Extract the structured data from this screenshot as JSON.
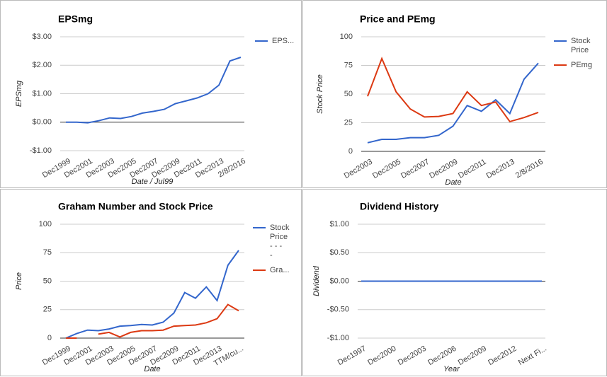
{
  "chart_data": [
    {
      "type": "line",
      "title": "EPSmg",
      "xlabel": "Date / Jul99",
      "ylabel": "EPSmg",
      "categories": [
        "Dec1999",
        null,
        "Dec2001",
        null,
        "Dec2003",
        null,
        "Dec2005",
        null,
        "Dec2007",
        null,
        "Dec2009",
        null,
        "Dec2011",
        null,
        "Dec2013",
        null,
        "2/8/2016"
      ],
      "series": [
        {
          "name": "EPS...",
          "color": "#3366cc",
          "values": [
            0,
            0,
            -0.02,
            0.05,
            0.15,
            0.13,
            0.2,
            0.32,
            0.38,
            0.45,
            0.65,
            0.75,
            0.85,
            1.0,
            1.3,
            2.15,
            2.28
          ]
        }
      ],
      "ylim": [
        -1,
        3
      ],
      "yticks": [
        {
          "value": 3,
          "label": "$3.00"
        },
        {
          "value": 2,
          "label": "$2.00"
        },
        {
          "value": 1,
          "label": "$1.00"
        },
        {
          "value": 0,
          "label": "$0.00"
        },
        {
          "value": -1,
          "label": "-$1.00"
        }
      ],
      "grid": true
    },
    {
      "type": "line",
      "title": "Price and PEmg",
      "xlabel": "Date",
      "ylabel": "Stock Price",
      "categories": [
        "Dec2003",
        null,
        "Dec2005",
        null,
        "Dec2007",
        null,
        "Dec2009",
        null,
        "Dec2011",
        null,
        "Dec2013",
        null,
        "2/8/2016"
      ],
      "series": [
        {
          "name": "Stock Price",
          "color": "#3366cc",
          "values": [
            7.5,
            10.5,
            10.5,
            12,
            12,
            14,
            22,
            40,
            35,
            45,
            33,
            63,
            77
          ]
        },
        {
          "name": "PEmg",
          "color": "#dc3912",
          "values": [
            48,
            81,
            52,
            37,
            30,
            30.5,
            33,
            52,
            40,
            43,
            26,
            29.5,
            34
          ]
        }
      ],
      "ylim": [
        0,
        100
      ],
      "yticks": [
        0,
        25,
        50,
        75,
        100
      ],
      "grid": true
    },
    {
      "type": "line",
      "title": "Graham Number and Stock Price",
      "xlabel": "Date",
      "ylabel": "Price",
      "categories": [
        "Dec1999",
        null,
        "Dec2001",
        null,
        "Dec2003",
        null,
        "Dec2005",
        null,
        "Dec2007",
        null,
        "Dec2009",
        null,
        "Dec2011",
        null,
        "Dec2013",
        null,
        "TTM/cu..."
      ],
      "series": [
        {
          "name": "Stock Price - - - -",
          "color": "#3366cc",
          "values": [
            0,
            4,
            7,
            6.5,
            8,
            10.5,
            11,
            12,
            11.5,
            14,
            22,
            40,
            35,
            45,
            33,
            64,
            77
          ]
        },
        {
          "name": "Gra...",
          "color": "#dc3912",
          "values": [
            0,
            0,
            null,
            3.5,
            5,
            1,
            5,
            6.5,
            6.5,
            7,
            10.5,
            11,
            11.5,
            13.5,
            17,
            29.5,
            24
          ]
        }
      ],
      "ylim": [
        0,
        100
      ],
      "yticks": [
        0,
        25,
        50,
        75,
        100
      ],
      "grid": true
    },
    {
      "type": "line",
      "title": "Dividend History",
      "xlabel": "Year",
      "ylabel": "Dividend",
      "categories": [
        "Dec1997",
        null,
        null,
        "Dec2000",
        null,
        null,
        "Dec2003",
        null,
        null,
        "Dec2006",
        null,
        null,
        "Dec2009",
        null,
        null,
        "Dec2012",
        null,
        null,
        "Next Fi..."
      ],
      "values": [
        0,
        0,
        0,
        0,
        0,
        0,
        0,
        0,
        0,
        0,
        0,
        0,
        0,
        0,
        0,
        0,
        0,
        0,
        0
      ],
      "color": "#3366cc",
      "ylim": [
        -1,
        1
      ],
      "yticks": [
        {
          "value": 1,
          "label": "$1.00"
        },
        {
          "value": 0.5,
          "label": "$0.50"
        },
        {
          "value": 0,
          "label": "$0.00"
        },
        {
          "value": -0.5,
          "label": "-$0.50"
        },
        {
          "value": -1,
          "label": "-$1.00"
        }
      ],
      "grid": true
    }
  ]
}
